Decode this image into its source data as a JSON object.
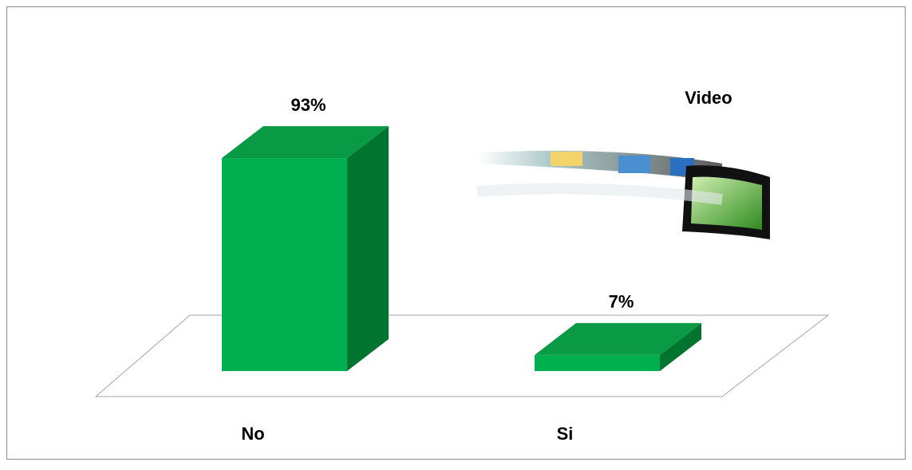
{
  "chart_data": {
    "type": "bar3d",
    "title": "Video",
    "categories": [
      "No",
      "Si"
    ],
    "values": [
      93,
      7
    ],
    "value_labels": [
      "93%",
      "7%"
    ],
    "color": "#00b050"
  }
}
